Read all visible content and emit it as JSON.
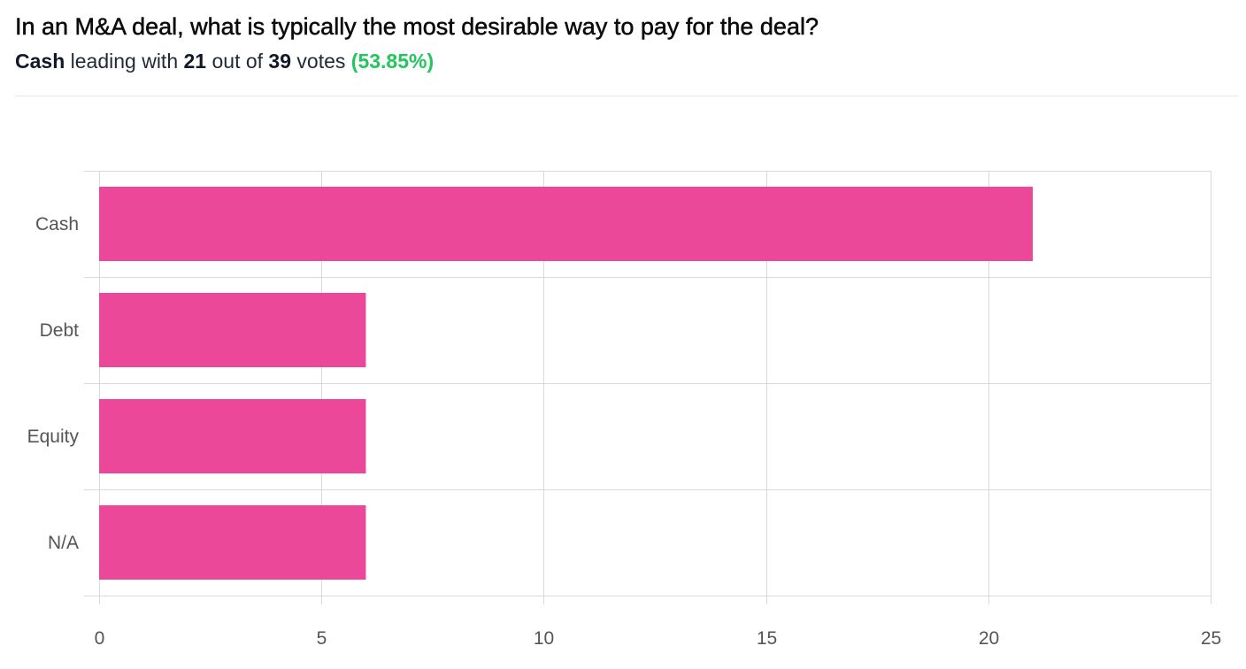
{
  "poll": {
    "question": "In an M&A deal, what is typically the most desirable way to pay for the deal?",
    "leader": "Cash",
    "leading_text": "leading with",
    "leader_votes": "21",
    "out_of_text": "out of",
    "total_votes": "39",
    "votes_text": "votes",
    "percent": "(53.85%)"
  },
  "colors": {
    "bar": "#ec4899",
    "grid": "#d9d9d9",
    "accent_green": "#22c55e"
  },
  "chart_data": {
    "type": "bar",
    "orientation": "horizontal",
    "categories": [
      "Cash",
      "Debt",
      "Equity",
      "N/A"
    ],
    "values": [
      21,
      6,
      6,
      6
    ],
    "xlim": [
      0,
      25
    ],
    "xticks": [
      0,
      5,
      10,
      15,
      20,
      25
    ],
    "grid": true,
    "title": "",
    "xlabel": "",
    "ylabel": ""
  }
}
